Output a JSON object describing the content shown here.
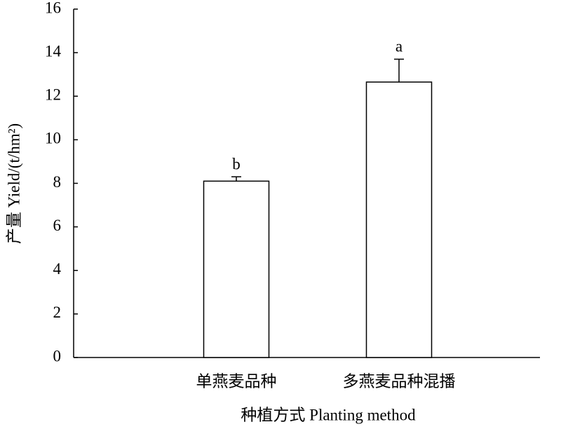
{
  "chart_data": {
    "type": "bar",
    "y_label": "产量 Yield/(t/hm²)",
    "x_label": "种植方式 Planting method",
    "categories": [
      "单燕麦品种",
      "多燕麦品种混播"
    ],
    "values": [
      8.1,
      12.65
    ],
    "errors": [
      0.2,
      1.05
    ],
    "letters": [
      "b",
      "a"
    ],
    "color": "#ffffff",
    "ylim": [
      0,
      16
    ],
    "yticks": [
      0,
      2,
      4,
      6,
      8,
      10,
      12,
      14,
      16
    ],
    "grid": false
  }
}
